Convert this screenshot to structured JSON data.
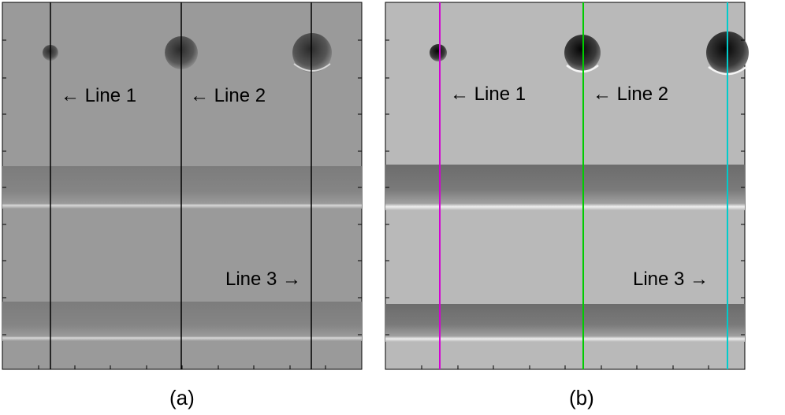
{
  "panels": [
    {
      "id": "a",
      "caption": "(a)",
      "background": "#9a9a9a",
      "line_colors": [
        "#000000",
        "#000000",
        "#000000"
      ],
      "labels": [
        "← Line 1",
        "← Line 2",
        "Line 3 →"
      ]
    },
    {
      "id": "b",
      "caption": "(b)",
      "background": "#b9b9b9",
      "line_colors": [
        "#d400d4",
        "#00cc00",
        "#00cccc"
      ],
      "labels": [
        "← Line 1",
        "← Line 2",
        "Line 3 →"
      ]
    }
  ]
}
